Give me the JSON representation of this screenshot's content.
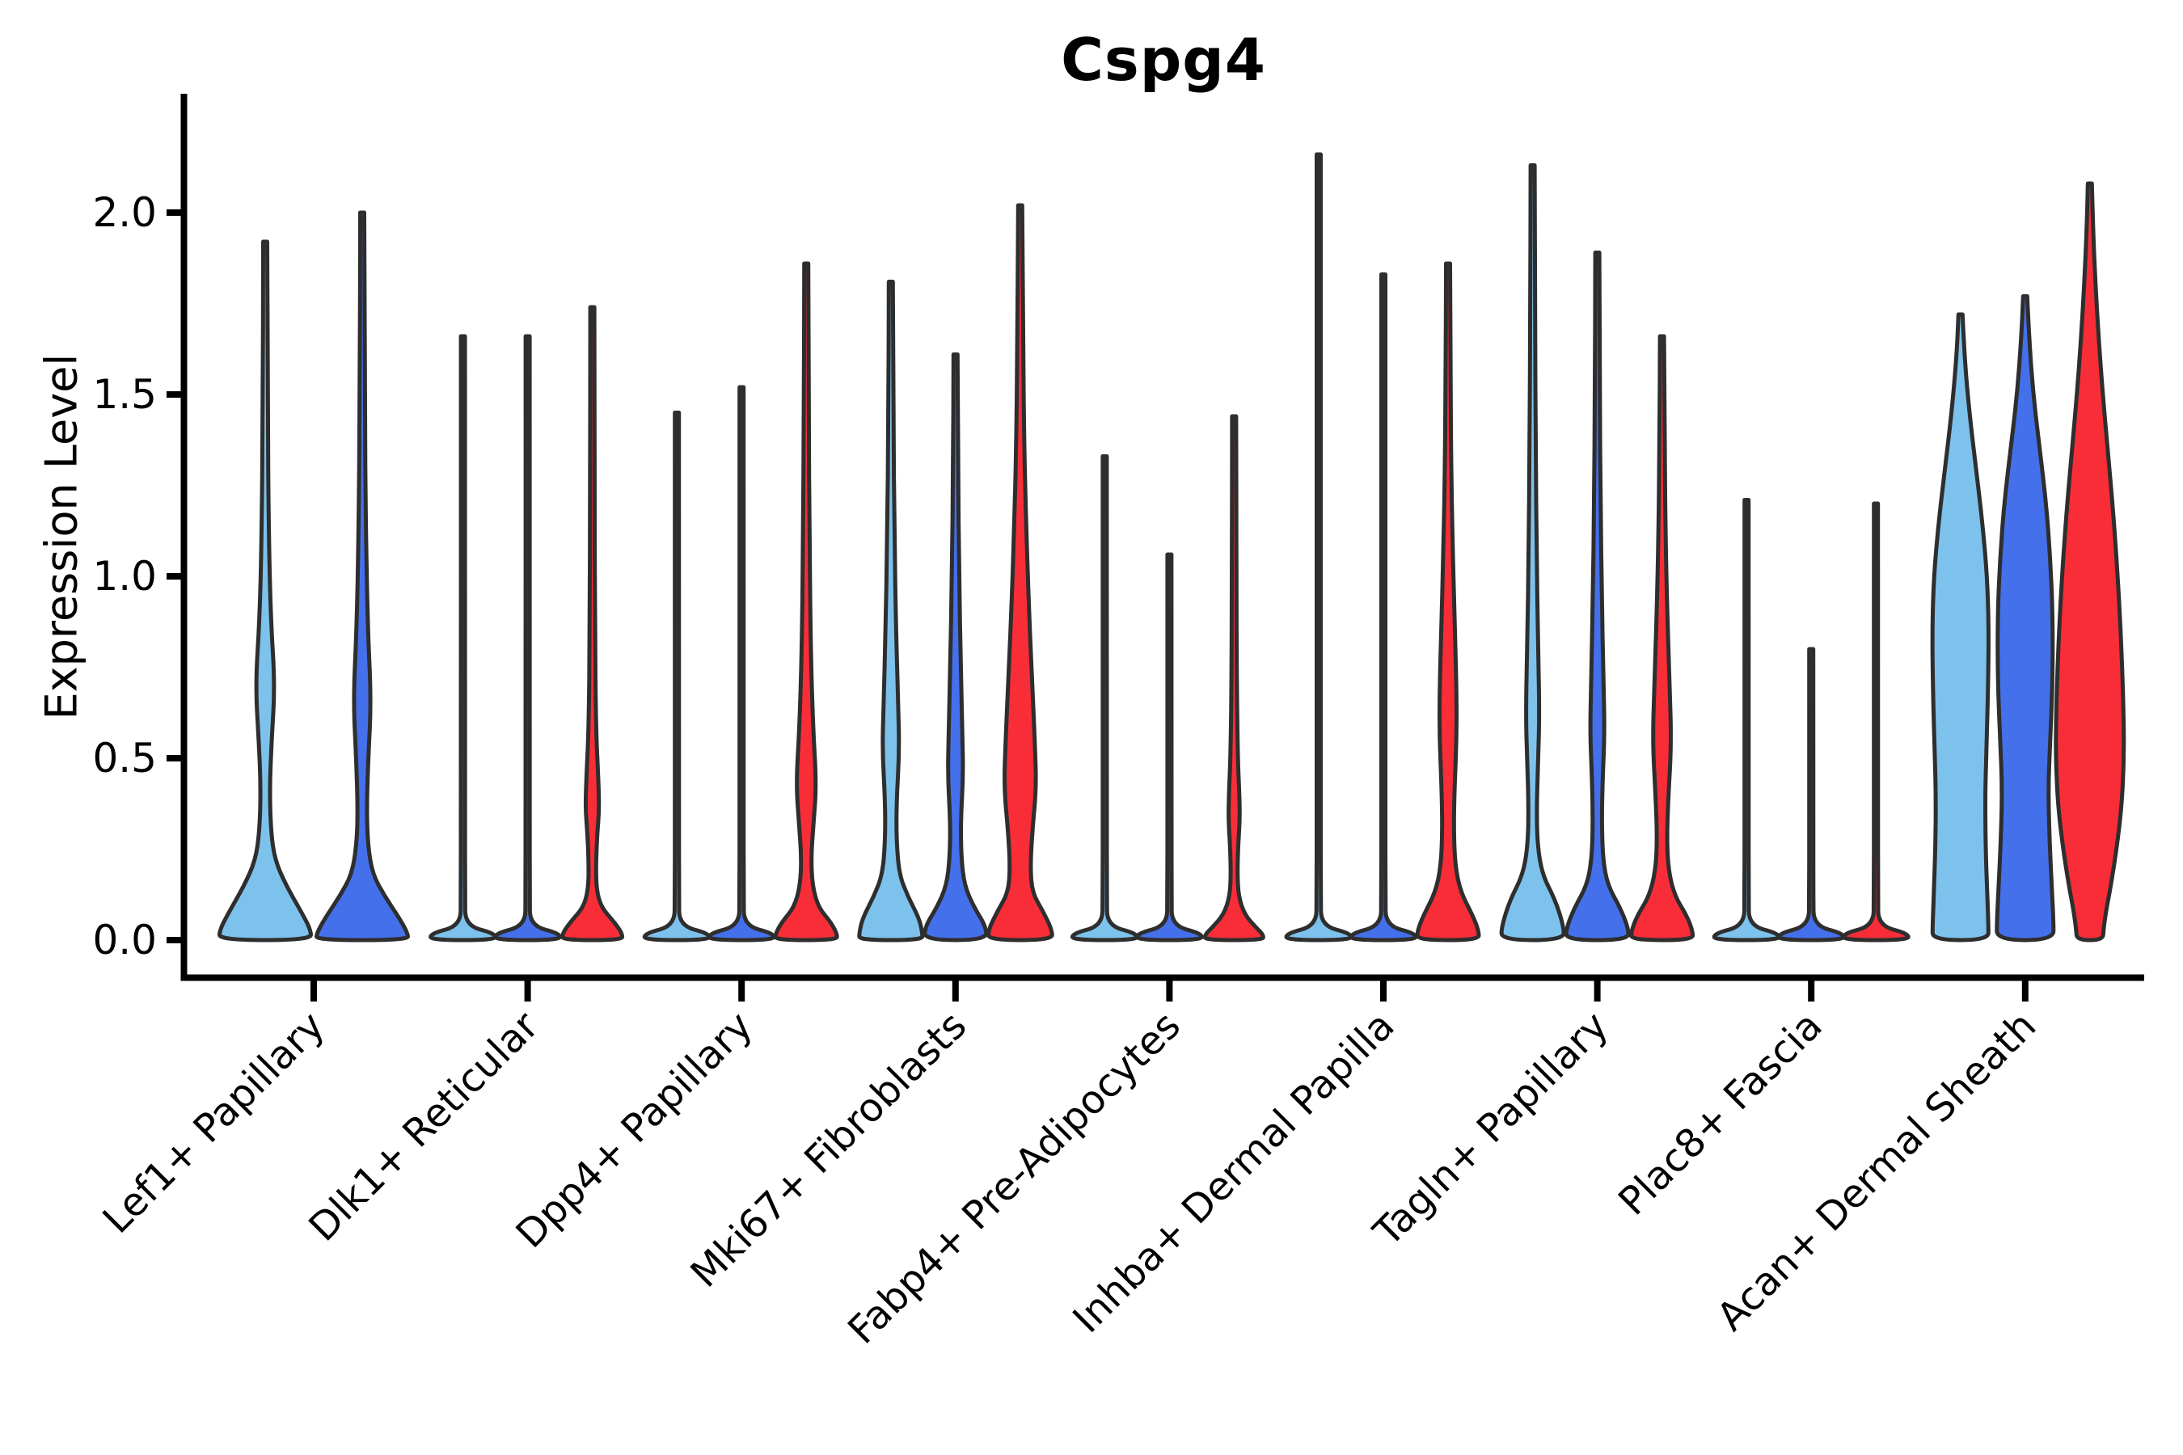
{
  "title": "Cspg4",
  "axes": {
    "ylabel": "Expression Level",
    "ytick_labels": [
      "0.0",
      "0.5",
      "1.0",
      "1.5",
      "2.0"
    ]
  },
  "chart_data": {
    "type": "violin",
    "title": "Cspg4",
    "xlabel": "",
    "ylabel": "Expression Level",
    "ylim": [
      -0.1,
      2.3
    ],
    "grid": false,
    "legend": "none",
    "ytick_values": [
      0.0,
      0.5,
      1.0,
      1.5,
      2.0
    ],
    "categories": [
      "Lef1+ Papillary",
      "Dlk1+ Reticular",
      "Dpp4+ Papillary",
      "Mki67+ Fibroblasts",
      "Fabp4+ Pre-Adipocytes",
      "Inhba+ Dermal Papilla",
      "Tagln+ Papillary",
      "Plac8+ Fascia",
      "Acan+ Dermal Sheath"
    ],
    "series_fill_colors": [
      "#7DC2EC",
      "#4470EB",
      "#F92D38"
    ],
    "edge_color": "#2E2E2E",
    "axis_color": "#000000",
    "violins": [
      {
        "group": 0,
        "cond": 0,
        "max": 1.92,
        "profile": [
          [
            1.92,
            2.5
          ],
          [
            1.45,
            3
          ],
          [
            1.1,
            4.5
          ],
          [
            0.88,
            7
          ],
          [
            0.7,
            12
          ],
          [
            0.55,
            8
          ],
          [
            0.42,
            5.5
          ],
          [
            0.3,
            7
          ],
          [
            0.22,
            12
          ],
          [
            0.15,
            26
          ],
          [
            0.08,
            44
          ],
          [
            0.03,
            56
          ],
          [
            0,
            57
          ]
        ]
      },
      {
        "group": 0,
        "cond": 1,
        "max": 2.0,
        "profile": [
          [
            2.0,
            2.5
          ],
          [
            1.5,
            3
          ],
          [
            1.12,
            4.5
          ],
          [
            0.85,
            7
          ],
          [
            0.66,
            11
          ],
          [
            0.5,
            7.5
          ],
          [
            0.36,
            5.5
          ],
          [
            0.26,
            7
          ],
          [
            0.18,
            13
          ],
          [
            0.12,
            28
          ],
          [
            0.06,
            46
          ],
          [
            0.02,
            56
          ],
          [
            0,
            57
          ]
        ]
      },
      {
        "group": 1,
        "cond": 0,
        "max": 1.66,
        "profile": [
          [
            1.66,
            2.5
          ],
          [
            0.35,
            2.5
          ],
          [
            0.12,
            2.6
          ],
          [
            0.04,
            3
          ],
          [
            0.018,
            40
          ],
          [
            0,
            40
          ]
        ]
      },
      {
        "group": 1,
        "cond": 1,
        "max": 1.66,
        "profile": [
          [
            1.66,
            2.5
          ],
          [
            0.35,
            2.5
          ],
          [
            0.12,
            2.6
          ],
          [
            0.04,
            3
          ],
          [
            0.018,
            40
          ],
          [
            0,
            40
          ]
        ]
      },
      {
        "group": 1,
        "cond": 2,
        "max": 1.74,
        "profile": [
          [
            1.74,
            2.5
          ],
          [
            1.25,
            2.8
          ],
          [
            0.85,
            3.2
          ],
          [
            0.58,
            4.5
          ],
          [
            0.44,
            7.5
          ],
          [
            0.36,
            8.5
          ],
          [
            0.29,
            6
          ],
          [
            0.21,
            4.5
          ],
          [
            0.14,
            5
          ],
          [
            0.09,
            11
          ],
          [
            0.05,
            27
          ],
          [
            0.018,
            37
          ],
          [
            0,
            37
          ]
        ]
      },
      {
        "group": 2,
        "cond": 0,
        "max": 1.45,
        "profile": [
          [
            1.45,
            2.5
          ],
          [
            0.35,
            2.5
          ],
          [
            0.12,
            2.6
          ],
          [
            0.04,
            3
          ],
          [
            0.018,
            40
          ],
          [
            0,
            40
          ]
        ]
      },
      {
        "group": 2,
        "cond": 1,
        "max": 1.52,
        "profile": [
          [
            1.52,
            2.5
          ],
          [
            0.35,
            2.5
          ],
          [
            0.12,
            2.6
          ],
          [
            0.04,
            3
          ],
          [
            0.018,
            40
          ],
          [
            0,
            40
          ]
        ]
      },
      {
        "group": 2,
        "cond": 2,
        "max": 1.86,
        "profile": [
          [
            1.86,
            2.5
          ],
          [
            1.45,
            3
          ],
          [
            1.1,
            4
          ],
          [
            0.8,
            5.5
          ],
          [
            0.58,
            8.5
          ],
          [
            0.43,
            12.5
          ],
          [
            0.32,
            9
          ],
          [
            0.23,
            6
          ],
          [
            0.15,
            7.5
          ],
          [
            0.09,
            15
          ],
          [
            0.05,
            30
          ],
          [
            0.018,
            38
          ],
          [
            0,
            38
          ]
        ]
      },
      {
        "group": 3,
        "cond": 0,
        "max": 1.81,
        "profile": [
          [
            1.81,
            2.5
          ],
          [
            1.45,
            3
          ],
          [
            1.1,
            4.5
          ],
          [
            0.85,
            6.5
          ],
          [
            0.65,
            9
          ],
          [
            0.52,
            10.5
          ],
          [
            0.38,
            7
          ],
          [
            0.27,
            7
          ],
          [
            0.18,
            10.5
          ],
          [
            0.12,
            21
          ],
          [
            0.06,
            35
          ],
          [
            0.02,
            39
          ],
          [
            0,
            39
          ]
        ]
      },
      {
        "group": 3,
        "cond": 1,
        "max": 1.61,
        "profile": [
          [
            1.61,
            2.5
          ],
          [
            1.3,
            3
          ],
          [
            1.0,
            4.5
          ],
          [
            0.75,
            6.5
          ],
          [
            0.57,
            8.5
          ],
          [
            0.45,
            9.5
          ],
          [
            0.33,
            6.5
          ],
          [
            0.23,
            7
          ],
          [
            0.15,
            11
          ],
          [
            0.09,
            23
          ],
          [
            0.04,
            37
          ],
          [
            0,
            39
          ]
        ]
      },
      {
        "group": 3,
        "cond": 2,
        "max": 2.02,
        "profile": [
          [
            2.02,
            2.5
          ],
          [
            1.65,
            3.5
          ],
          [
            1.35,
            5
          ],
          [
            1.13,
            7.5
          ],
          [
            0.9,
            11
          ],
          [
            0.7,
            15
          ],
          [
            0.55,
            18
          ],
          [
            0.42,
            20
          ],
          [
            0.3,
            15
          ],
          [
            0.2,
            12.5
          ],
          [
            0.13,
            15
          ],
          [
            0.08,
            28
          ],
          [
            0.03,
            39
          ],
          [
            0,
            40
          ]
        ]
      },
      {
        "group": 4,
        "cond": 0,
        "max": 1.33,
        "profile": [
          [
            1.33,
            2.5
          ],
          [
            0.35,
            2.5
          ],
          [
            0.12,
            2.6
          ],
          [
            0.04,
            3
          ],
          [
            0.018,
            40
          ],
          [
            0,
            40
          ]
        ]
      },
      {
        "group": 4,
        "cond": 1,
        "max": 1.06,
        "profile": [
          [
            1.06,
            2.5
          ],
          [
            0.35,
            2.5
          ],
          [
            0.12,
            2.6
          ],
          [
            0.04,
            3
          ],
          [
            0.018,
            40
          ],
          [
            0,
            40
          ]
        ]
      },
      {
        "group": 4,
        "cond": 2,
        "max": 1.44,
        "profile": [
          [
            1.44,
            2.5
          ],
          [
            1.05,
            2.8
          ],
          [
            0.72,
            3.2
          ],
          [
            0.5,
            4.5
          ],
          [
            0.4,
            6.5
          ],
          [
            0.33,
            7
          ],
          [
            0.26,
            5
          ],
          [
            0.18,
            4
          ],
          [
            0.12,
            5.5
          ],
          [
            0.07,
            13
          ],
          [
            0.035,
            27
          ],
          [
            0.015,
            36
          ],
          [
            0,
            36
          ]
        ]
      },
      {
        "group": 5,
        "cond": 0,
        "max": 2.16,
        "profile": [
          [
            2.16,
            2.5
          ],
          [
            0.35,
            2.5
          ],
          [
            0.12,
            2.6
          ],
          [
            0.04,
            3
          ],
          [
            0.018,
            40
          ],
          [
            0,
            40
          ]
        ]
      },
      {
        "group": 5,
        "cond": 1,
        "max": 1.83,
        "profile": [
          [
            1.83,
            2.5
          ],
          [
            0.35,
            2.5
          ],
          [
            0.12,
            2.6
          ],
          [
            0.04,
            3
          ],
          [
            0.018,
            40
          ],
          [
            0,
            40
          ]
        ]
      },
      {
        "group": 5,
        "cond": 2,
        "max": 1.86,
        "profile": [
          [
            1.86,
            2.5
          ],
          [
            1.55,
            3
          ],
          [
            1.28,
            4
          ],
          [
            1.05,
            6
          ],
          [
            0.85,
            8.5
          ],
          [
            0.68,
            10.5
          ],
          [
            0.55,
            10.5
          ],
          [
            0.42,
            8
          ],
          [
            0.3,
            7
          ],
          [
            0.2,
            9
          ],
          [
            0.13,
            16
          ],
          [
            0.07,
            30
          ],
          [
            0.025,
            38
          ],
          [
            0,
            38
          ]
        ]
      },
      {
        "group": 6,
        "cond": 0,
        "max": 2.13,
        "profile": [
          [
            2.13,
            2.5
          ],
          [
            1.7,
            3
          ],
          [
            1.35,
            3.8
          ],
          [
            1.05,
            5
          ],
          [
            0.83,
            6.5
          ],
          [
            0.62,
            8.5
          ],
          [
            0.48,
            6.5
          ],
          [
            0.36,
            5
          ],
          [
            0.26,
            6
          ],
          [
            0.18,
            12
          ],
          [
            0.11,
            28
          ],
          [
            0.04,
            38
          ],
          [
            0,
            39
          ]
        ]
      },
      {
        "group": 6,
        "cond": 1,
        "max": 1.89,
        "profile": [
          [
            1.89,
            2.5
          ],
          [
            1.5,
            3
          ],
          [
            1.2,
            4
          ],
          [
            0.95,
            5.5
          ],
          [
            0.72,
            7.5
          ],
          [
            0.57,
            9
          ],
          [
            0.44,
            6.5
          ],
          [
            0.32,
            5.5
          ],
          [
            0.22,
            7
          ],
          [
            0.15,
            13
          ],
          [
            0.09,
            28
          ],
          [
            0.035,
            38
          ],
          [
            0,
            39
          ]
        ]
      },
      {
        "group": 6,
        "cond": 2,
        "max": 1.66,
        "profile": [
          [
            1.66,
            2.5
          ],
          [
            1.35,
            3.2
          ],
          [
            1.1,
            4.5
          ],
          [
            0.9,
            6.5
          ],
          [
            0.7,
            9.5
          ],
          [
            0.54,
            11.5
          ],
          [
            0.4,
            8
          ],
          [
            0.28,
            6
          ],
          [
            0.19,
            8
          ],
          [
            0.12,
            16
          ],
          [
            0.07,
            30
          ],
          [
            0.025,
            38
          ],
          [
            0,
            38
          ]
        ]
      },
      {
        "group": 7,
        "cond": 0,
        "max": 1.21,
        "profile": [
          [
            1.21,
            2.5
          ],
          [
            0.35,
            2.5
          ],
          [
            0.12,
            2.6
          ],
          [
            0.04,
            3
          ],
          [
            0.018,
            40
          ],
          [
            0,
            40
          ]
        ]
      },
      {
        "group": 7,
        "cond": 1,
        "max": 0.8,
        "profile": [
          [
            0.8,
            2.5
          ],
          [
            0.3,
            2.5
          ],
          [
            0.12,
            2.6
          ],
          [
            0.04,
            3
          ],
          [
            0.018,
            40
          ],
          [
            0,
            40
          ]
        ]
      },
      {
        "group": 7,
        "cond": 2,
        "max": 1.2,
        "profile": [
          [
            1.2,
            2.5
          ],
          [
            0.35,
            2.5
          ],
          [
            0.12,
            2.6
          ],
          [
            0.04,
            3
          ],
          [
            0.018,
            40
          ],
          [
            0,
            40
          ]
        ]
      },
      {
        "group": 8,
        "cond": 0,
        "max": 1.72,
        "profile": [
          [
            1.72,
            2.5
          ],
          [
            1.6,
            5
          ],
          [
            1.45,
            11
          ],
          [
            1.3,
            19
          ],
          [
            1.15,
            27
          ],
          [
            1.0,
            33
          ],
          [
            0.85,
            35
          ],
          [
            0.68,
            34
          ],
          [
            0.52,
            32
          ],
          [
            0.4,
            30.5
          ],
          [
            0.26,
            31
          ],
          [
            0.13,
            33
          ],
          [
            0.04,
            34.5
          ],
          [
            0,
            34.5
          ]
        ]
      },
      {
        "group": 8,
        "cond": 1,
        "max": 1.77,
        "profile": [
          [
            1.77,
            2.5
          ],
          [
            1.65,
            5
          ],
          [
            1.5,
            10
          ],
          [
            1.35,
            18
          ],
          [
            1.2,
            26
          ],
          [
            1.05,
            31
          ],
          [
            0.9,
            34
          ],
          [
            0.72,
            34
          ],
          [
            0.55,
            31
          ],
          [
            0.42,
            28.5
          ],
          [
            0.28,
            30
          ],
          [
            0.14,
            33
          ],
          [
            0.05,
            35
          ],
          [
            0,
            35
          ]
        ]
      },
      {
        "group": 8,
        "cond": 2,
        "max": 2.08,
        "profile": [
          [
            2.08,
            2.5
          ],
          [
            1.95,
            4
          ],
          [
            1.8,
            7
          ],
          [
            1.65,
            11
          ],
          [
            1.5,
            16
          ],
          [
            1.35,
            22
          ],
          [
            1.2,
            28
          ],
          [
            1.05,
            33
          ],
          [
            0.9,
            37
          ],
          [
            0.75,
            40
          ],
          [
            0.6,
            42
          ],
          [
            0.48,
            42
          ],
          [
            0.36,
            39
          ],
          [
            0.25,
            33
          ],
          [
            0.15,
            26
          ],
          [
            0.08,
            20
          ],
          [
            0.03,
            17
          ],
          [
            0,
            16
          ]
        ]
      }
    ]
  }
}
